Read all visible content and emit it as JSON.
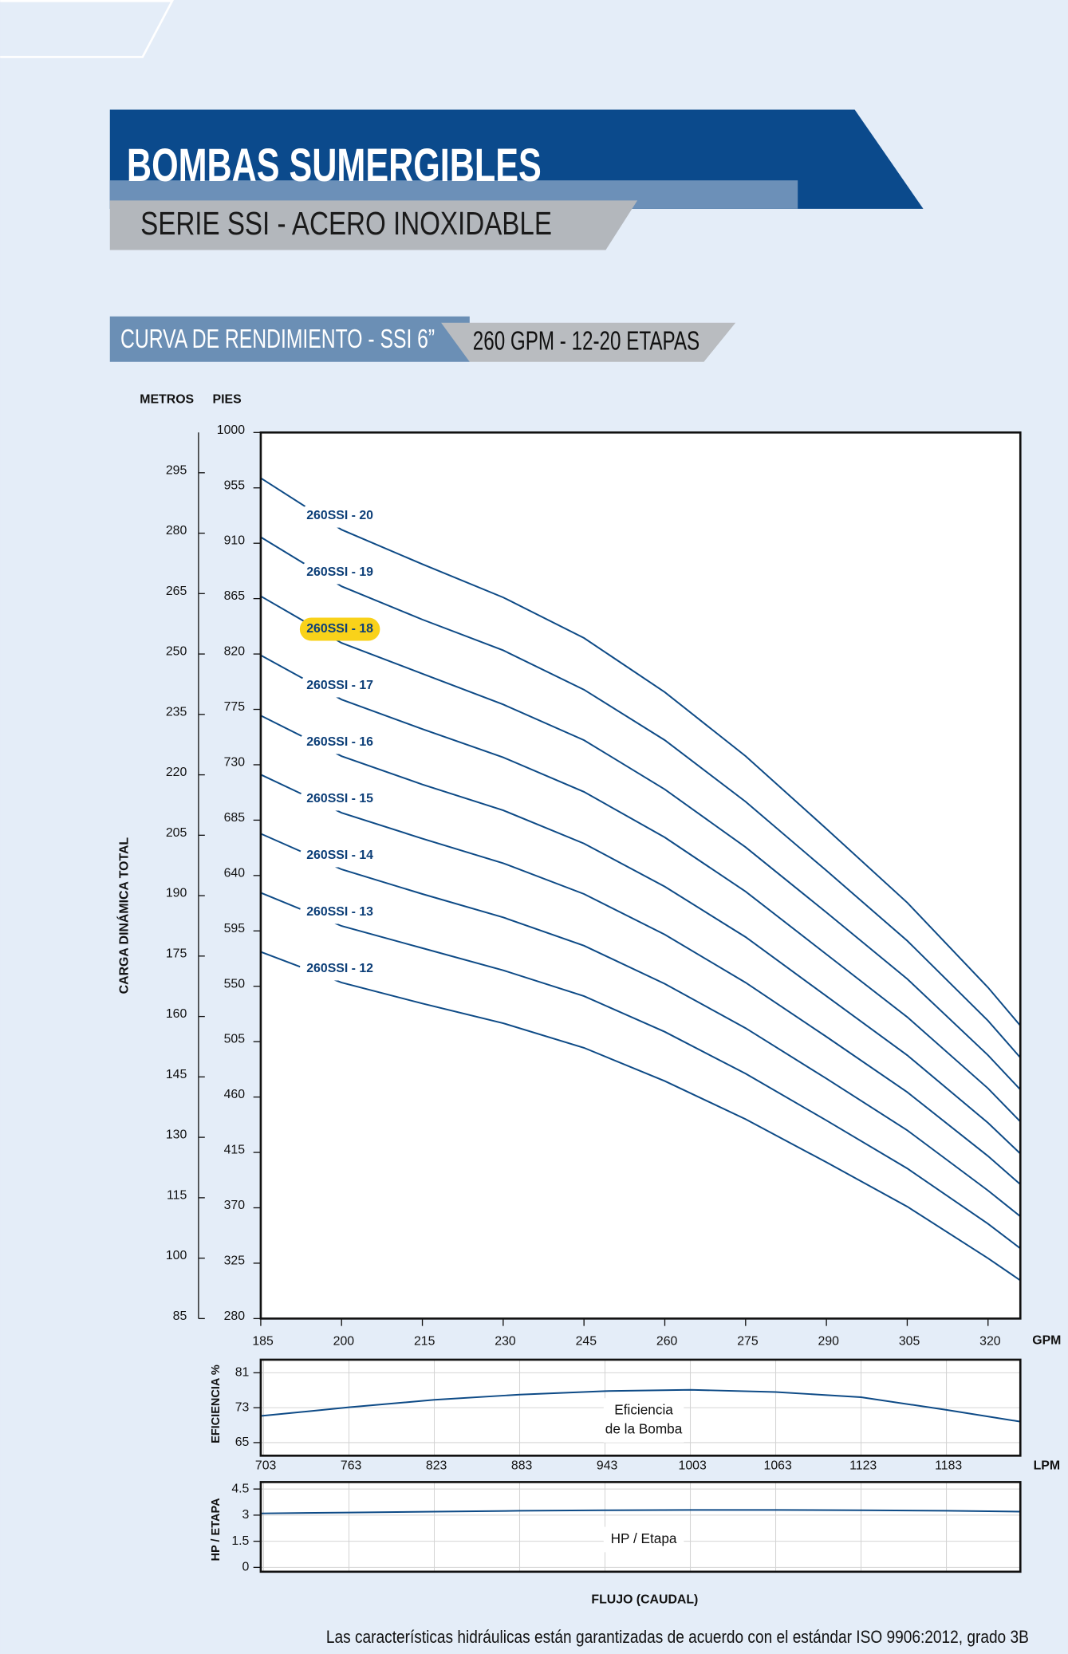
{
  "header": {
    "title": "BOMBAS SUMERGIBLES",
    "subtitle": "SERIE SSI - ACERO INOXIDABLE",
    "section": "CURVA DE RENDIMIENTO - SSI 6”",
    "section_detail": "260 GPM - 12-20 ETAPAS"
  },
  "chart_data": [
    {
      "type": "line",
      "y_axis_label": "CARGA DINÁMICA TOTAL",
      "ylabel": "PIES",
      "y2label": "METROS",
      "x_unit": "GPM",
      "x": [
        185,
        200,
        215,
        230,
        245,
        260,
        275,
        290,
        305,
        320,
        326
      ],
      "xlim": [
        185,
        326
      ],
      "xticks": [
        185,
        200,
        215,
        230,
        245,
        260,
        275,
        290,
        305,
        320
      ],
      "ylim": [
        280,
        1000
      ],
      "yticks": [
        280,
        325,
        370,
        415,
        460,
        505,
        550,
        595,
        640,
        685,
        730,
        775,
        820,
        865,
        910,
        955,
        1000
      ],
      "y2lim": [
        85,
        305
      ],
      "y2ticks": [
        85,
        100,
        115,
        130,
        145,
        160,
        175,
        190,
        205,
        220,
        235,
        250,
        265,
        280,
        295
      ],
      "grid": false,
      "color": "#0d4a86",
      "series": [
        {
          "name": "260SSI - 20",
          "values": [
            963,
            921,
            893,
            866,
            833,
            789,
            737,
            678,
            618,
            549,
            518
          ]
        },
        {
          "name": "260SSI - 19",
          "values": [
            915,
            875,
            848,
            823,
            791,
            750,
            700,
            644,
            587,
            522,
            492
          ]
        },
        {
          "name": "260SSI - 18",
          "highlighted": true,
          "values": [
            867,
            829,
            804,
            779,
            750,
            710,
            663,
            610,
            556,
            494,
            466
          ]
        },
        {
          "name": "260SSI - 17",
          "values": [
            819,
            783,
            759,
            736,
            708,
            671,
            627,
            576,
            525,
            467,
            440
          ]
        },
        {
          "name": "260SSI - 16",
          "values": [
            770,
            737,
            714,
            693,
            666,
            631,
            590,
            542,
            494,
            439,
            414
          ]
        },
        {
          "name": "260SSI - 15",
          "values": [
            722,
            691,
            670,
            650,
            625,
            592,
            553,
            509,
            464,
            412,
            389
          ]
        },
        {
          "name": "260SSI - 14",
          "values": [
            674,
            645,
            625,
            606,
            583,
            552,
            516,
            475,
            433,
            384,
            363
          ]
        },
        {
          "name": "260SSI - 13",
          "values": [
            626,
            599,
            581,
            563,
            542,
            513,
            479,
            441,
            402,
            357,
            337
          ]
        },
        {
          "name": "260SSI - 12",
          "values": [
            578,
            553,
            536,
            520,
            500,
            473,
            442,
            407,
            371,
            329,
            311
          ]
        }
      ]
    },
    {
      "type": "line",
      "ylabel": "EFICIENCIA %",
      "x_unit": "LPM",
      "annotation": [
        "Eficiencia",
        "de la Bomba"
      ],
      "x": [
        701,
        763,
        823,
        883,
        943,
        1003,
        1063,
        1123,
        1183,
        1235
      ],
      "xlim": [
        701,
        1235
      ],
      "xticks": [
        703,
        763,
        823,
        883,
        943,
        1003,
        1063,
        1123,
        1183
      ],
      "ylim": [
        62,
        84
      ],
      "yticks": [
        65,
        73,
        81
      ],
      "grid": true,
      "color": "#0d4a86",
      "values": [
        71.1,
        73.1,
        74.8,
        76.0,
        76.8,
        77.1,
        76.6,
        75.4,
        72.5,
        69.8
      ]
    },
    {
      "type": "line",
      "ylabel": "HP / ETAPA",
      "xlabel": "FLUJO (CAUDAL)",
      "annotation": "HP / Etapa",
      "x": [
        701,
        763,
        823,
        883,
        943,
        1003,
        1063,
        1123,
        1183,
        1235
      ],
      "xlim": [
        701,
        1235
      ],
      "ylim": [
        -0.25,
        4.9
      ],
      "yticks": [
        0,
        1.5,
        3,
        4.5
      ],
      "grid": true,
      "color": "#0d4a86",
      "values": [
        3.1,
        3.15,
        3.2,
        3.25,
        3.28,
        3.3,
        3.3,
        3.28,
        3.25,
        3.2
      ]
    }
  ],
  "footer": "Las características hidráulicas están garantizadas de acuerdo con el estándar ISO 9906:2012, grado 3B"
}
